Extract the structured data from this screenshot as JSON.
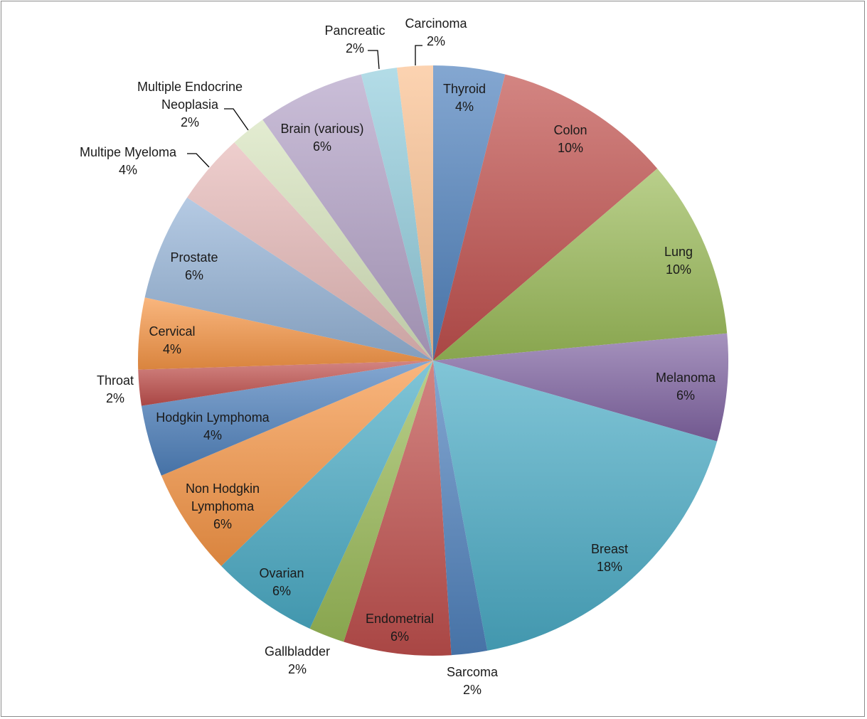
{
  "chart_data": {
    "type": "pie",
    "title": "",
    "start_angle_deg": 0,
    "direction": "clockwise",
    "legend": "none",
    "slices": [
      {
        "label": "Thyroid",
        "value": 4,
        "value_label": "4%",
        "color": "#4F81BD"
      },
      {
        "label": "Colon",
        "value": 10,
        "value_label": "10%",
        "color": "#C0504D"
      },
      {
        "label": "Lung",
        "value": 10,
        "value_label": "10%",
        "color": "#9BBB59"
      },
      {
        "label": "Melanoma",
        "value": 6,
        "value_label": "6%",
        "color": "#8064A2"
      },
      {
        "label": "Breast",
        "value": 18,
        "value_label": "18%",
        "color": "#4BACC6"
      },
      {
        "label": "Sarcoma",
        "value": 2,
        "value_label": "2%",
        "color": "#4F81BD"
      },
      {
        "label": "Endometrial",
        "value": 6,
        "value_label": "6%",
        "color": "#C0504D"
      },
      {
        "label": "Gallbladder",
        "value": 2,
        "value_label": "2%",
        "color": "#9BBB59"
      },
      {
        "label": "Ovarian",
        "value": 6,
        "value_label": "6%",
        "color": "#4BACC6"
      },
      {
        "label": "Non Hodgkin Lymphoma",
        "value": 6,
        "value_label": "6%",
        "color": "#F79646"
      },
      {
        "label": "Hodgkin Lymphoma",
        "value": 4,
        "value_label": "4%",
        "color": "#4F81BD"
      },
      {
        "label": "Throat",
        "value": 2,
        "value_label": "2%",
        "color": "#C0504D"
      },
      {
        "label": "Cervical",
        "value": 4,
        "value_label": "4%",
        "color": "#F79646"
      },
      {
        "label": "Prostate",
        "value": 6,
        "value_label": "6%",
        "color": "#95B3D7"
      },
      {
        "label": "Multipe Myeloma",
        "value": 4,
        "value_label": "4%",
        "color": "#E6B9B8"
      },
      {
        "label": "Multiple Endocrine Neoplasia",
        "value": 2,
        "value_label": "2%",
        "color": "#D7E4BD"
      },
      {
        "label": "Brain (various)",
        "value": 6,
        "value_label": "6%",
        "color": "#B3A2C7"
      },
      {
        "label": "Pancreatic",
        "value": 2,
        "value_label": "2%",
        "color": "#93CDDD"
      },
      {
        "label": "Carcinoma",
        "value": 2,
        "value_label": "2%",
        "color": "#FAC090"
      }
    ]
  }
}
